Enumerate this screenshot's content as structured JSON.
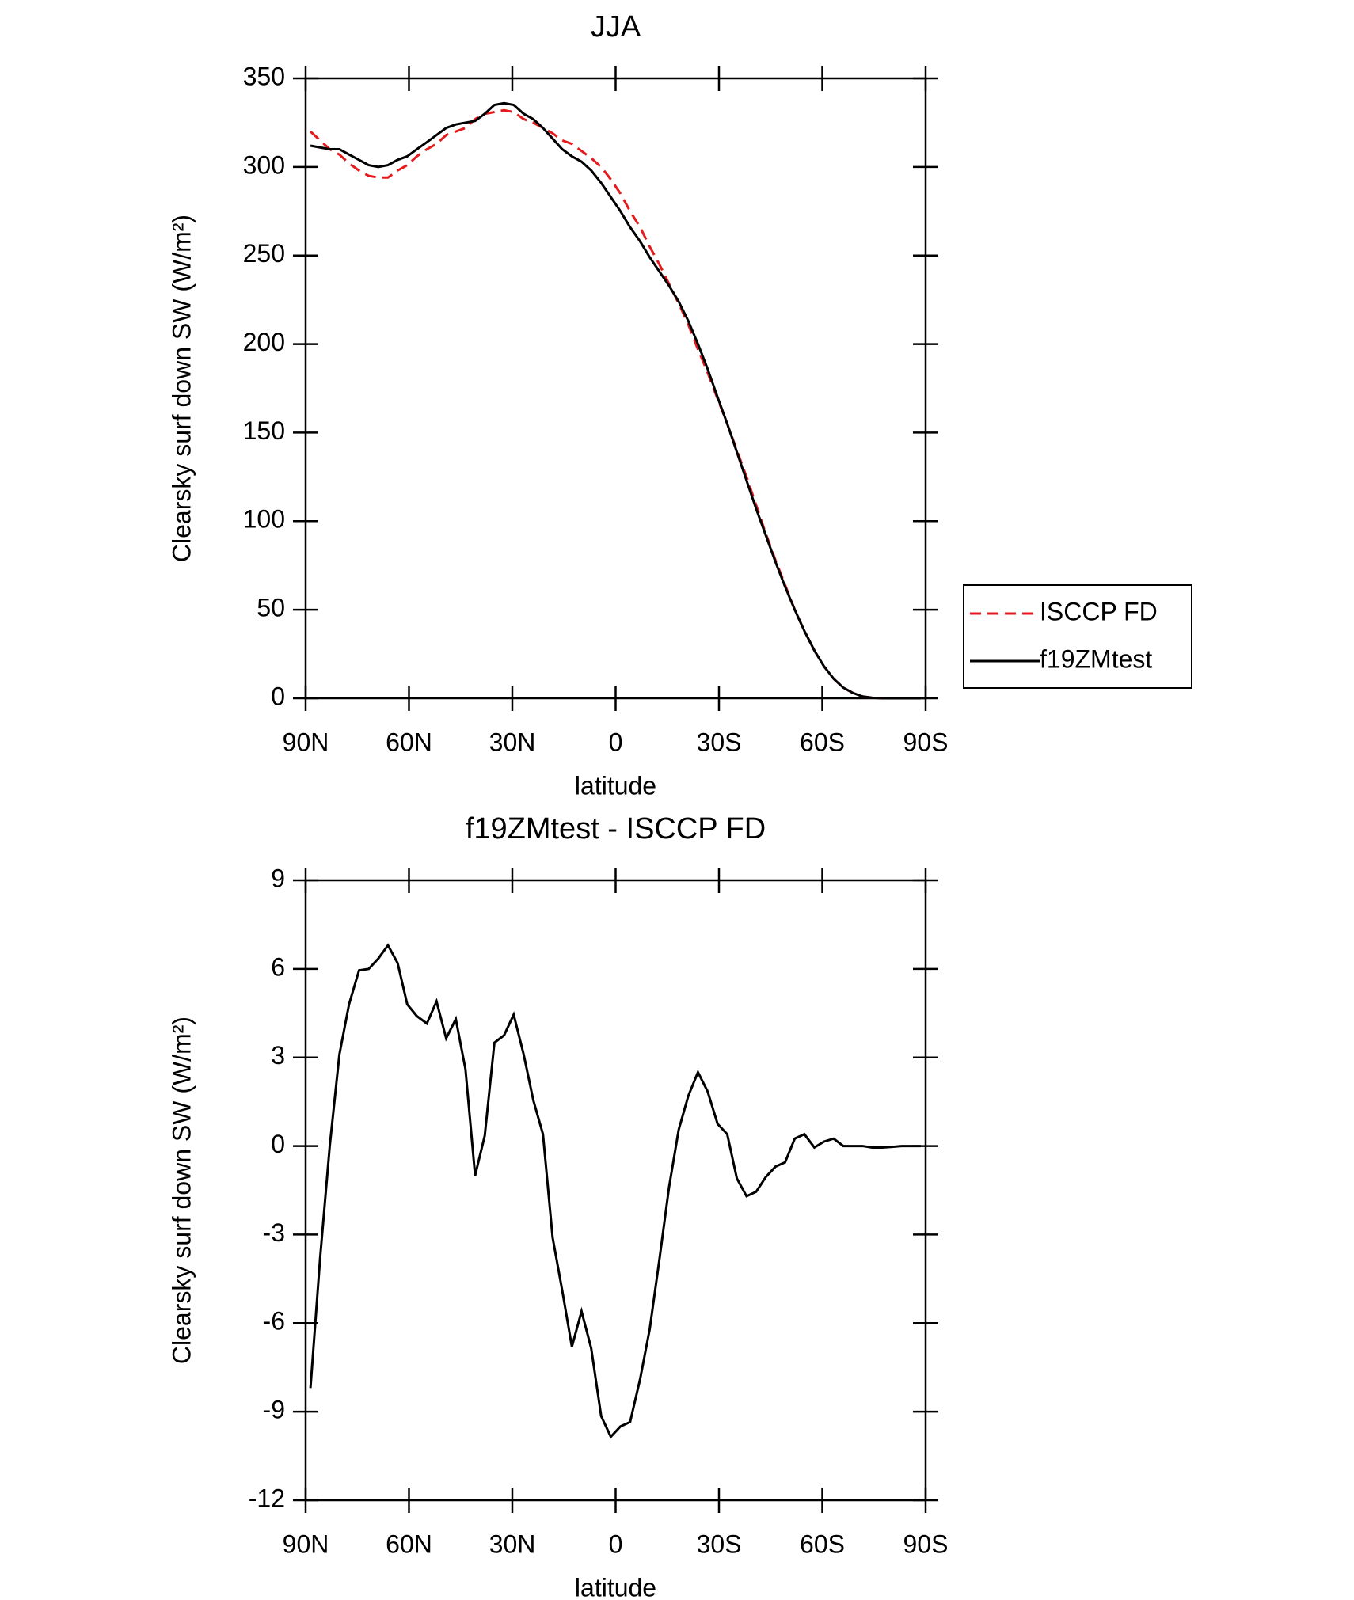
{
  "chart_data": [
    {
      "type": "line",
      "title": "JJA",
      "xlabel": "latitude",
      "ylabel": "Clearsky surf down SW (W/m²)",
      "x": [
        88.6,
        85.8,
        83.0,
        80.2,
        77.4,
        74.5,
        71.7,
        68.9,
        66.1,
        63.3,
        60.5,
        57.7,
        54.8,
        52.0,
        49.2,
        46.4,
        43.6,
        40.8,
        38.0,
        35.2,
        32.4,
        29.6,
        26.7,
        23.9,
        21.1,
        18.3,
        15.5,
        12.7,
        9.9,
        7.1,
        4.2,
        1.4,
        -1.4,
        -4.2,
        -7.1,
        -9.9,
        -12.7,
        -15.5,
        -18.3,
        -21.1,
        -23.9,
        -26.7,
        -29.6,
        -32.4,
        -35.2,
        -38.0,
        -40.8,
        -43.6,
        -46.4,
        -49.2,
        -52.0,
        -54.8,
        -57.7,
        -60.5,
        -63.3,
        -66.1,
        -68.9,
        -71.7,
        -74.5,
        -77.4,
        -80.2,
        -83.0,
        -85.8,
        -88.6
      ],
      "series": [
        {
          "name": "ISCCP FD",
          "color": "#e41a1c",
          "dash": true,
          "values": [
            320,
            315,
            310,
            307,
            302,
            298,
            295,
            294,
            294,
            298,
            301,
            306,
            310,
            313,
            318,
            320,
            322,
            327,
            330,
            331,
            332,
            331,
            327,
            325,
            322,
            319,
            315,
            313,
            309,
            305,
            300,
            293,
            285,
            275,
            266,
            255,
            245,
            234,
            223,
            211,
            197,
            184,
            169,
            155,
            140,
            125,
            109,
            93,
            78,
            64,
            50,
            38,
            27,
            18,
            11,
            6,
            3,
            1,
            0.3,
            0,
            0,
            0,
            0,
            0
          ]
        },
        {
          "name": "f19ZMtest",
          "color": "#000000",
          "dash": false,
          "values": [
            312,
            311,
            310,
            310,
            307,
            304,
            301,
            300,
            301,
            304,
            306,
            310,
            314,
            318,
            322,
            324,
            325,
            326,
            330,
            335,
            336,
            335,
            330,
            327,
            322,
            316,
            310,
            306,
            303,
            298,
            291,
            283,
            275,
            266,
            258,
            249,
            241,
            233,
            224,
            213,
            200,
            186,
            170,
            155,
            139,
            123,
            107,
            92,
            77,
            63,
            50,
            38,
            27,
            18,
            11,
            6,
            3,
            1,
            0.3,
            0,
            0,
            0,
            0,
            0
          ]
        }
      ],
      "xlim": [
        90,
        -90
      ],
      "xticks": [
        {
          "value": 90,
          "label": "90N"
        },
        {
          "value": 60,
          "label": "60N"
        },
        {
          "value": 30,
          "label": "30N"
        },
        0,
        {
          "value": -30,
          "label": "30S"
        },
        {
          "value": -60,
          "label": "60S"
        },
        {
          "value": -90,
          "label": "90S"
        }
      ],
      "ylim": [
        0,
        350
      ],
      "yticks": [
        0,
        50,
        100,
        150,
        200,
        250,
        300,
        350
      ],
      "legend": "right"
    },
    {
      "type": "line",
      "title": "f19ZMtest - ISCCP FD",
      "xlabel": "latitude",
      "ylabel": "Clearsky surf down SW (W/m²)",
      "x": [
        88.6,
        85.8,
        83.0,
        80.2,
        77.4,
        74.5,
        71.7,
        68.9,
        66.1,
        63.3,
        60.5,
        57.7,
        54.8,
        52.0,
        49.2,
        46.4,
        43.6,
        40.8,
        38.0,
        35.2,
        32.4,
        29.6,
        26.7,
        23.9,
        21.1,
        18.3,
        15.5,
        12.7,
        9.9,
        7.1,
        4.2,
        1.4,
        -1.4,
        -4.2,
        -7.1,
        -9.9,
        -12.7,
        -15.5,
        -18.3,
        -21.1,
        -23.9,
        -26.7,
        -29.6,
        -32.4,
        -35.2,
        -38.0,
        -40.8,
        -43.6,
        -46.4,
        -49.2,
        -52.0,
        -54.8,
        -57.7,
        -60.5,
        -63.3,
        -66.1,
        -68.9,
        -71.7,
        -74.5,
        -77.4,
        -80.2,
        -83.0,
        -85.8,
        -88.6
      ],
      "series": [
        {
          "color": "#000000",
          "dash": false,
          "values": [
            -8.2,
            -3.8,
            0.0,
            3.1,
            4.8,
            5.95,
            6.0,
            6.35,
            6.8,
            6.2,
            4.8,
            4.4,
            4.15,
            4.9,
            3.65,
            4.3,
            2.6,
            -1.0,
            0.35,
            3.5,
            3.75,
            4.45,
            3.1,
            1.55,
            0.4,
            -3.1,
            -4.9,
            -6.8,
            -5.6,
            -6.85,
            -9.15,
            -9.85,
            -9.5,
            -9.35,
            -7.9,
            -6.2,
            -3.85,
            -1.4,
            0.55,
            1.7,
            2.5,
            1.85,
            0.75,
            0.4,
            -1.1,
            -1.7,
            -1.55,
            -1.05,
            -0.7,
            -0.55,
            0.25,
            0.4,
            -0.05,
            0.15,
            0.25,
            0.0,
            0.0,
            0.0,
            -0.05,
            -0.05,
            -0.03,
            0.0,
            0.0,
            0.0
          ]
        }
      ],
      "xlim": [
        90,
        -90
      ],
      "xticks": [
        {
          "value": 90,
          "label": "90N"
        },
        {
          "value": 60,
          "label": "60N"
        },
        {
          "value": 30,
          "label": "30N"
        },
        0,
        {
          "value": -30,
          "label": "30S"
        },
        {
          "value": -60,
          "label": "60S"
        },
        {
          "value": -90,
          "label": "90S"
        }
      ],
      "ylim": [
        -12,
        9
      ],
      "yticks": [
        -12,
        -9,
        -6,
        -3,
        0,
        3,
        6,
        9
      ]
    }
  ]
}
